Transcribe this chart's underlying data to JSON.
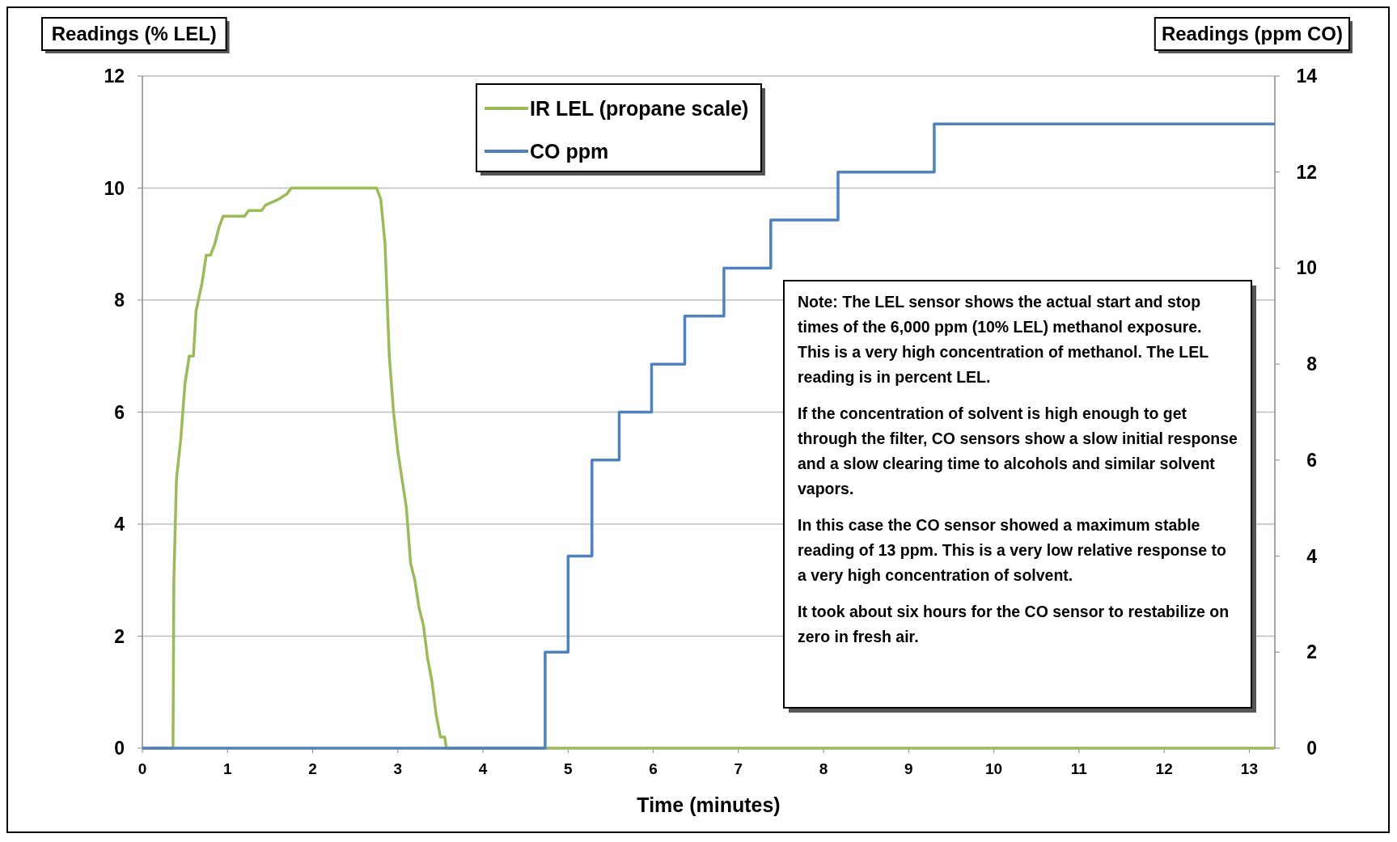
{
  "chart_data": {
    "type": "line",
    "xlabel": "Time (minutes)",
    "ylabel": "Readings (% LEL)",
    "y2label": "Readings (ppm CO)",
    "xlim": [
      0,
      13.3
    ],
    "xticks": [
      0,
      1,
      2,
      3,
      4,
      5,
      6,
      7,
      8,
      9,
      10,
      11,
      12,
      13
    ],
    "ylim": [
      0,
      12
    ],
    "yticks": [
      0,
      2,
      4,
      6,
      8,
      10,
      12
    ],
    "y2lim": [
      0,
      14
    ],
    "y2ticks": [
      0,
      2,
      4,
      6,
      8,
      10,
      12,
      14
    ],
    "grid": "y",
    "legend": "top",
    "series": [
      {
        "name": "IR LEL (propane scale)",
        "color": "#9bbb59",
        "x": [
          0,
          0.36,
          0.37,
          0.4,
          0.45,
          0.5,
          0.55,
          0.6,
          0.63,
          0.7,
          0.75,
          0.8,
          0.85,
          0.9,
          0.95,
          1.2,
          1.25,
          1.4,
          1.45,
          1.6,
          1.7,
          1.75,
          2.75,
          2.8,
          2.85,
          2.9,
          2.95,
          3.0,
          3.05,
          3.1,
          3.15,
          3.2,
          3.25,
          3.3,
          3.35,
          3.4,
          3.45,
          3.5,
          3.55,
          3.57,
          13.3
        ],
        "values": [
          0,
          0,
          3,
          4.8,
          5.5,
          6.5,
          7,
          7,
          7.8,
          8.3,
          8.8,
          8.8,
          9,
          9.3,
          9.5,
          9.5,
          9.6,
          9.6,
          9.7,
          9.8,
          9.9,
          10,
          10,
          9.8,
          9,
          7,
          6,
          5.3,
          4.8,
          4.3,
          3.3,
          3,
          2.5,
          2.2,
          1.6,
          1.2,
          0.6,
          0.2,
          0.2,
          0,
          0
        ]
      },
      {
        "name": "CO ppm",
        "color": "#4f81bd",
        "type": "step",
        "axis": "y2",
        "x": [
          0,
          4.73,
          5.0,
          5.28,
          5.6,
          5.98,
          6.37,
          6.83,
          7.38,
          8.17,
          9.3,
          13.3
        ],
        "values": [
          0,
          2,
          4,
          6,
          7,
          8,
          9,
          10,
          11,
          12,
          13,
          13
        ]
      }
    ],
    "annotations": [
      "Note:  The LEL sensor shows  the actual start and stop times of the 6,000 ppm (10% LEL) methanol exposure.  This is a very high concentration of methanol.  The LEL reading is in percent LEL.",
      "If the concentration of solvent is high enough to get through the filter, CO sensors show a slow initial response and a slow clearing time to alcohols and similar solvent vapors.",
      "In this case the CO sensor showed a maximum stable reading of 13 ppm.  This is a very low relative response to a very high concentration of solvent.",
      "It took about six hours for the CO sensor to restabilize on zero in fresh air."
    ]
  }
}
